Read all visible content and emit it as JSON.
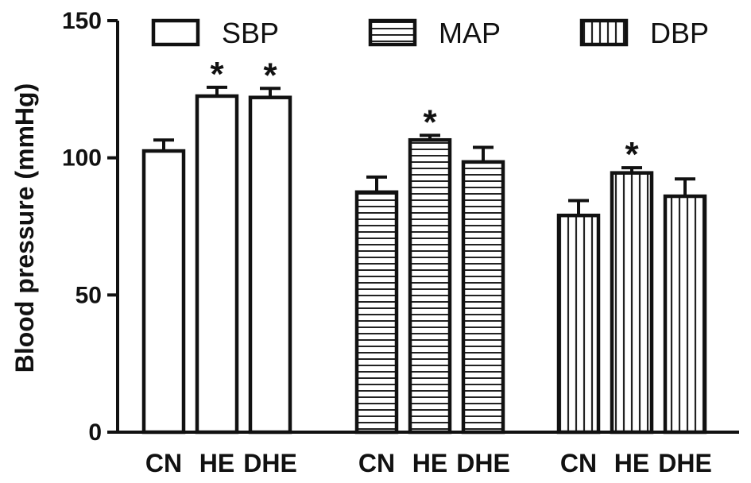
{
  "chart_data": {
    "type": "bar",
    "title": "",
    "xlabel": "",
    "ylabel": "Blood pressure (mmHg)",
    "ylim": [
      0,
      150
    ],
    "yticks": [
      0,
      50,
      100,
      150
    ],
    "grid": false,
    "legend_position": "top",
    "groups": [
      {
        "name": "SBP",
        "pattern": "open",
        "categories": [
          "CN",
          "HE",
          "DHE"
        ],
        "values": [
          102.5,
          122.5,
          122
        ],
        "errors": [
          4,
          3.2,
          3.3
        ],
        "significance": [
          "",
          "*",
          "*"
        ]
      },
      {
        "name": "MAP",
        "pattern": "horizontal-stripes",
        "categories": [
          "CN",
          "HE",
          "DHE"
        ],
        "values": [
          87.5,
          106.5,
          98.5
        ],
        "errors": [
          5.5,
          1.7,
          5.3
        ],
        "significance": [
          "",
          "*",
          ""
        ]
      },
      {
        "name": "DBP",
        "pattern": "vertical-stripes",
        "categories": [
          "CN",
          "HE",
          "DHE"
        ],
        "values": [
          79,
          94.5,
          86
        ],
        "errors": [
          5.4,
          1.9,
          6.3
        ],
        "significance": [
          "",
          "*",
          ""
        ]
      }
    ]
  }
}
